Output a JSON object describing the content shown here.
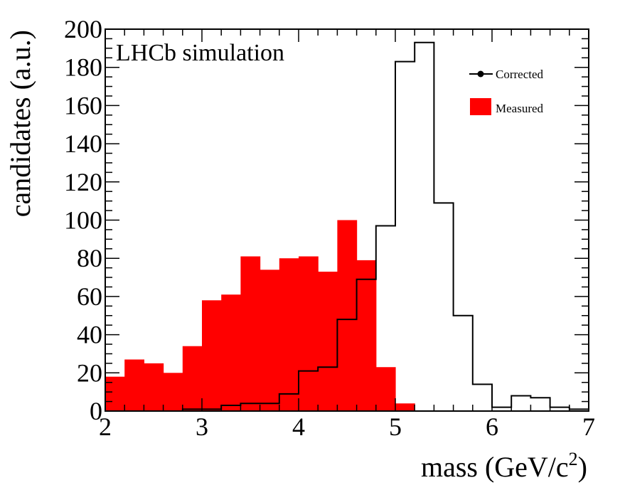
{
  "chart_data": {
    "type": "histogram",
    "annotation": "LHCb simulation",
    "xlabel_main": "mass (GeV/c",
    "xlabel_sup": "2",
    "xlabel_close": ")",
    "ylabel": "candidates (a.u.)",
    "xlim": [
      2,
      7
    ],
    "ylim": [
      0,
      200
    ],
    "x_ticks": [
      "2",
      "3",
      "4",
      "5",
      "6",
      "7"
    ],
    "y_ticks": [
      "0",
      "20",
      "40",
      "60",
      "80",
      "100",
      "120",
      "140",
      "160",
      "180",
      "200"
    ],
    "bin_width": 0.2,
    "bin_edges_start": 2.0,
    "series": [
      {
        "name": "Measured",
        "style": "filled",
        "color": "#ff0000",
        "values": [
          18,
          27,
          25,
          20,
          34,
          58,
          61,
          81,
          74,
          80,
          81,
          73,
          100,
          79,
          23,
          4,
          0,
          0,
          0,
          0,
          0,
          0,
          0,
          0,
          0
        ]
      },
      {
        "name": "Corrected",
        "style": "step",
        "color": "#000000",
        "values": [
          0,
          0,
          0,
          0,
          1,
          1,
          3,
          4,
          4,
          9,
          21,
          23,
          48,
          69,
          97,
          183,
          193,
          109,
          50,
          14,
          2,
          8,
          7,
          2,
          1
        ]
      }
    ],
    "legend": [
      {
        "label": "Corrected",
        "marker": "line-dot"
      },
      {
        "label": "Measured",
        "marker": "box"
      }
    ],
    "legend_placement": "top-right"
  }
}
